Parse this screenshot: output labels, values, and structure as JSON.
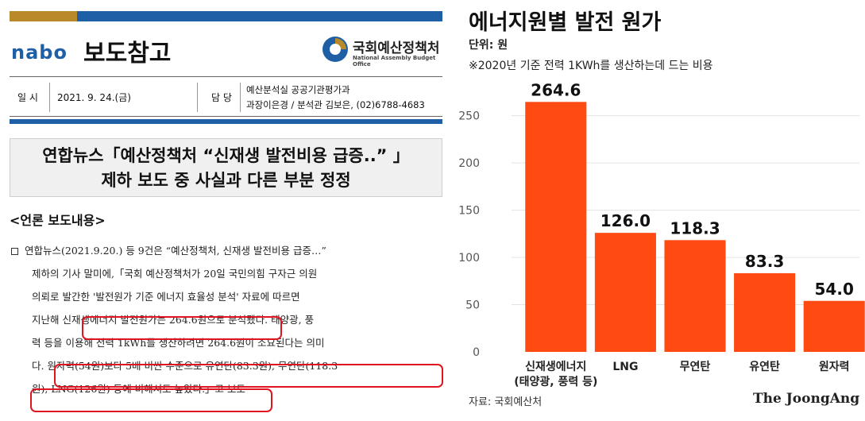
{
  "document": {
    "logo_text": "nabo",
    "doc_type": "보도참고",
    "org_name": "국회예산정책처",
    "org_name_en": "National Assembly Budget Office",
    "date_label": "일 시",
    "date_value": "2021. 9. 24.(금)",
    "contact_label": "담 당",
    "contact_line1": "예산분석실 공공기관평가과",
    "contact_line2": "과장이은경 / 분석관 김보은, (02)6788-4683",
    "title_line1": "연합뉴스「예산정책처  “신재생 발전비용 급증..” 」",
    "title_line2": "제하 보도 중 사실과 다른 부분 정정",
    "section_label": "<언론 보도내용>",
    "body_lines": [
      "연합뉴스(2021.9.20.) 등 9건은 “예산정책처, 신재생 발전비용 급증…”",
      "제하의 기사 말미에,「국회 예산정책처가 20일 국민의힘 구자근 의원",
      "의뢰로 발간한 '발전원가 기준 에너지 효율성 분석' 자료에 따르면",
      "지난해 신재생에너지 발전원가는 264.6원으로 분석됐다. 태양광, 풍",
      "력 등을 이용해 전력 1kWh를 생산하려면 264.6원이 소요된다는 의미",
      "다. 원자력(54원)보다 5배 비싼 수준으로 유연탄(83.3원), 무연탄(118.3",
      "원), LNG(126원) 등에 비해서도 높았다.」고 보도"
    ]
  },
  "chart": {
    "title": "에너지원별 발전 원가",
    "unit": "단위: 원",
    "note": "※2020년 기준 전력 1KWh를 생산하는데 드는 비용",
    "source": "자료: 국회예산처",
    "brand": "The JoongAng",
    "bar_color": "#ff4a12"
  },
  "chart_data": {
    "type": "bar",
    "title": "에너지원별 발전 원가",
    "ylabel": "",
    "xlabel": "",
    "categories": [
      "신재생에너지\n(태양광, 풍력 등)",
      "LNG",
      "무연탄",
      "유연탄",
      "원자력"
    ],
    "values": [
      264.6,
      126.0,
      118.3,
      83.3,
      54.0
    ],
    "value_labels": [
      "264.6",
      "126.0",
      "118.3",
      "83.3",
      "54.0"
    ],
    "yticks": [
      0,
      50,
      100,
      150,
      200,
      250
    ],
    "ylim": [
      0,
      280
    ],
    "grid": true
  }
}
